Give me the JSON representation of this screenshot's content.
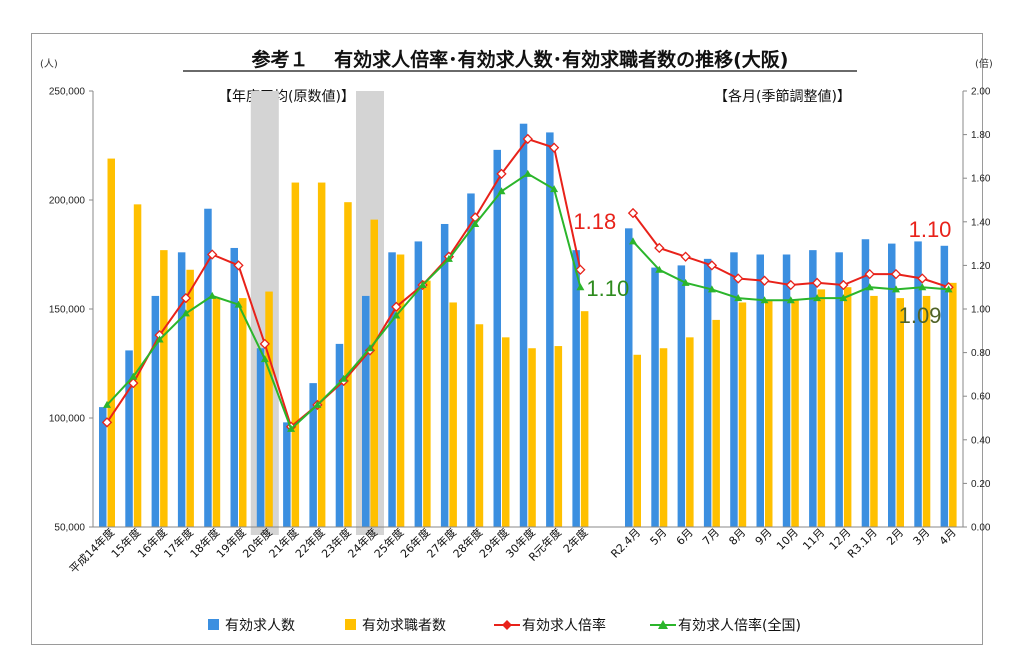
{
  "chart_data": {
    "type": "bar",
    "title": "参考１　 有効求人倍率･有効求人数･有効求職者数の推移(大阪)",
    "subtitle_left": "【年度平均(原数値)】",
    "subtitle_right": "【各月(季節調整値)】",
    "y_left_unit": "(人)",
    "y_right_unit": "(倍)",
    "y_left_ticks": [
      "50,000",
      "100,000",
      "150,000",
      "200,000",
      "250,000"
    ],
    "y_right_ticks": [
      "0.00",
      "0.20",
      "0.40",
      "0.60",
      "0.80",
      "1.00",
      "1.20",
      "1.40",
      "1.60",
      "1.80",
      "2.00"
    ],
    "ylim_left": [
      50000,
      250000
    ],
    "ylim_right": [
      0,
      2.0
    ],
    "grid": false,
    "legend_position": "bottom",
    "categories": [
      "平成14年度",
      "15年度",
      "16年度",
      "17年度",
      "18年度",
      "19年度",
      "20年度",
      "21年度",
      "22年度",
      "23年度",
      "24年度",
      "25年度",
      "26年度",
      "27年度",
      "28年度",
      "29年度",
      "30年度",
      "R元年度",
      "2年度",
      "R2.4月",
      "5月",
      "6月",
      "7月",
      "8月",
      "9月",
      "10月",
      "11月",
      "12月",
      "R3.1月",
      "2月",
      "3月",
      "4月"
    ],
    "highlight_categories": [
      "20年度",
      "24年度"
    ],
    "series": [
      {
        "name": "有効求人数",
        "kind": "bar",
        "axis": "left",
        "color": "#3b8fe0",
        "values": [
          105000,
          131000,
          156000,
          176000,
          196000,
          178000,
          132000,
          98000,
          116000,
          134000,
          156000,
          176000,
          181000,
          189000,
          203000,
          223000,
          235000,
          231000,
          177000,
          187000,
          169000,
          170000,
          173000,
          176000,
          175000,
          175000,
          177000,
          176000,
          182000,
          180000,
          181000,
          179000
        ]
      },
      {
        "name": "有効求職者数",
        "kind": "bar",
        "axis": "left",
        "color": "#ffc000",
        "values": [
          219000,
          198000,
          177000,
          168000,
          155000,
          155000,
          158000,
          208000,
          208000,
          199000,
          191000,
          175000,
          163000,
          153000,
          143000,
          137000,
          132000,
          133000,
          149000,
          129000,
          132000,
          137000,
          145000,
          153000,
          154000,
          154000,
          159000,
          160000,
          156000,
          155000,
          156000,
          162000
        ]
      },
      {
        "name": "有効求人倍率",
        "kind": "line",
        "axis": "right",
        "color": "#e8221a",
        "values": [
          0.48,
          0.66,
          0.88,
          1.05,
          1.25,
          1.2,
          0.84,
          0.46,
          0.56,
          0.67,
          0.81,
          1.01,
          1.11,
          1.24,
          1.42,
          1.62,
          1.78,
          1.74,
          1.18,
          1.44,
          1.28,
          1.24,
          1.2,
          1.14,
          1.13,
          1.11,
          1.12,
          1.11,
          1.16,
          1.16,
          1.14,
          1.1
        ]
      },
      {
        "name": "有効求人倍率(全国)",
        "kind": "line",
        "axis": "right",
        "color": "#2bb52b",
        "values": [
          0.56,
          0.69,
          0.86,
          0.98,
          1.06,
          1.02,
          0.77,
          0.45,
          0.56,
          0.68,
          0.82,
          0.97,
          1.11,
          1.23,
          1.39,
          1.54,
          1.62,
          1.55,
          1.1,
          1.31,
          1.18,
          1.12,
          1.09,
          1.05,
          1.04,
          1.04,
          1.05,
          1.05,
          1.1,
          1.09,
          1.1,
          1.09
        ]
      }
    ],
    "annotations": [
      {
        "text": "1.18",
        "category": "2年度",
        "color": "#e8221a"
      },
      {
        "text": "1.10",
        "category": "2年度",
        "color": "#2e8b1e"
      },
      {
        "text": "1.10",
        "category": "4月",
        "color": "#e8221a"
      },
      {
        "text": "1.09",
        "category": "4月",
        "color": "#4f6228"
      }
    ]
  }
}
